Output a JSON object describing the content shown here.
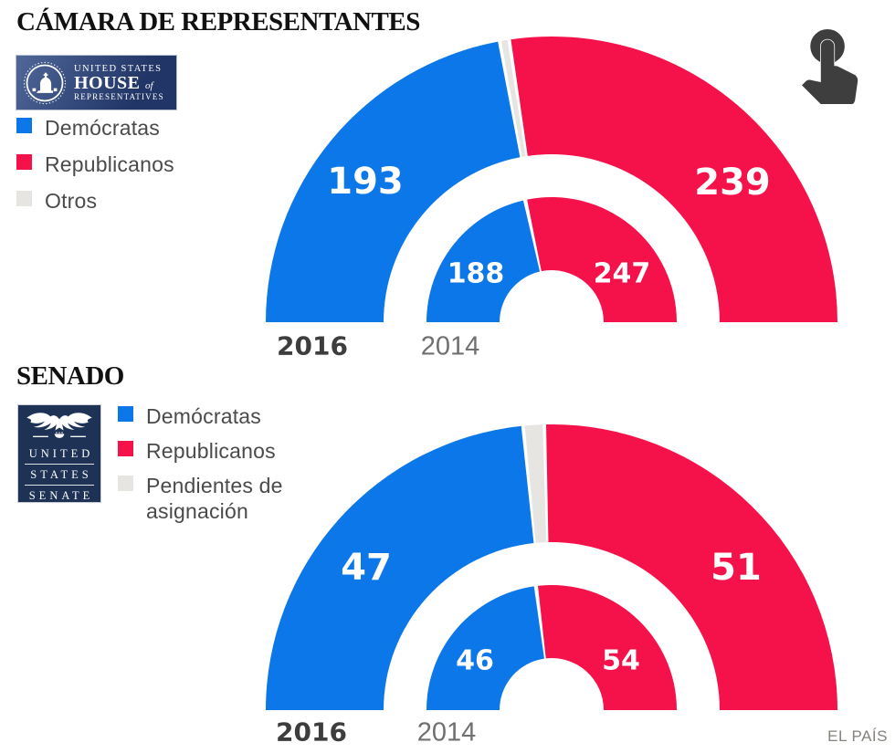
{
  "page": {
    "background": "#ffffff"
  },
  "footer": {
    "brand": "EL PAÍS"
  },
  "colors": {
    "democrats": "#0b77e8",
    "republicans": "#f5124b",
    "others": "#e6e5e2",
    "tap_icon": "#3e3e3e",
    "house_logo_bg": "#2e4a85",
    "senate_logo_bg": "#1d3254",
    "title_text": "#111111",
    "legend_text": "#4a4a4a",
    "year_2016_text": "#3d3d3d",
    "year_2014_text": "#707070",
    "brand_text": "#86827c"
  },
  "house_logo": {
    "top": "UNITED STATES",
    "main": "HOUSE",
    "of_word": "of",
    "bottom": "REPRESENTATIVES"
  },
  "senate_logo": {
    "word1": "UNITED",
    "word2": "STATES",
    "word3": "SENATE"
  },
  "chart_data": [
    {
      "id": "house",
      "type": "half-donut",
      "title": "CÁMARA DE REPRESENTANTES",
      "legend": [
        {
          "label": "Demócratas",
          "party": "democrats"
        },
        {
          "label": "Republicanos",
          "party": "republicans"
        },
        {
          "label": "Otros",
          "party": "others"
        }
      ],
      "rings": [
        {
          "year": "2016",
          "total": 435,
          "segments": [
            {
              "party": "democrats",
              "label": "Demócratas",
              "value": 193
            },
            {
              "party": "others",
              "label": "Otros",
              "value": 3
            },
            {
              "party": "republicans",
              "label": "Republicanos",
              "value": 239
            }
          ]
        },
        {
          "year": "2014",
          "total": 435,
          "segments": [
            {
              "party": "democrats",
              "label": "Demócratas",
              "value": 188
            },
            {
              "party": "republicans",
              "label": "Republicanos",
              "value": 247
            }
          ]
        }
      ]
    },
    {
      "id": "senate",
      "type": "half-donut",
      "title": "SENADO",
      "legend": [
        {
          "label": "Demócratas",
          "party": "democrats"
        },
        {
          "label": "Republicanos",
          "party": "republicans"
        },
        {
          "label": "Pendientes de asignación",
          "party": "others"
        }
      ],
      "rings": [
        {
          "year": "2016",
          "total": 100,
          "segments": [
            {
              "party": "democrats",
              "label": "Demócratas",
              "value": 47
            },
            {
              "party": "others",
              "label": "Pendientes de asignación",
              "value": 2
            },
            {
              "party": "republicans",
              "label": "Republicanos",
              "value": 51
            }
          ]
        },
        {
          "year": "2014",
          "total": 100,
          "segments": [
            {
              "party": "democrats",
              "label": "Demócratas",
              "value": 46
            },
            {
              "party": "republicans",
              "label": "Republicanos",
              "value": 54
            }
          ]
        }
      ]
    }
  ]
}
